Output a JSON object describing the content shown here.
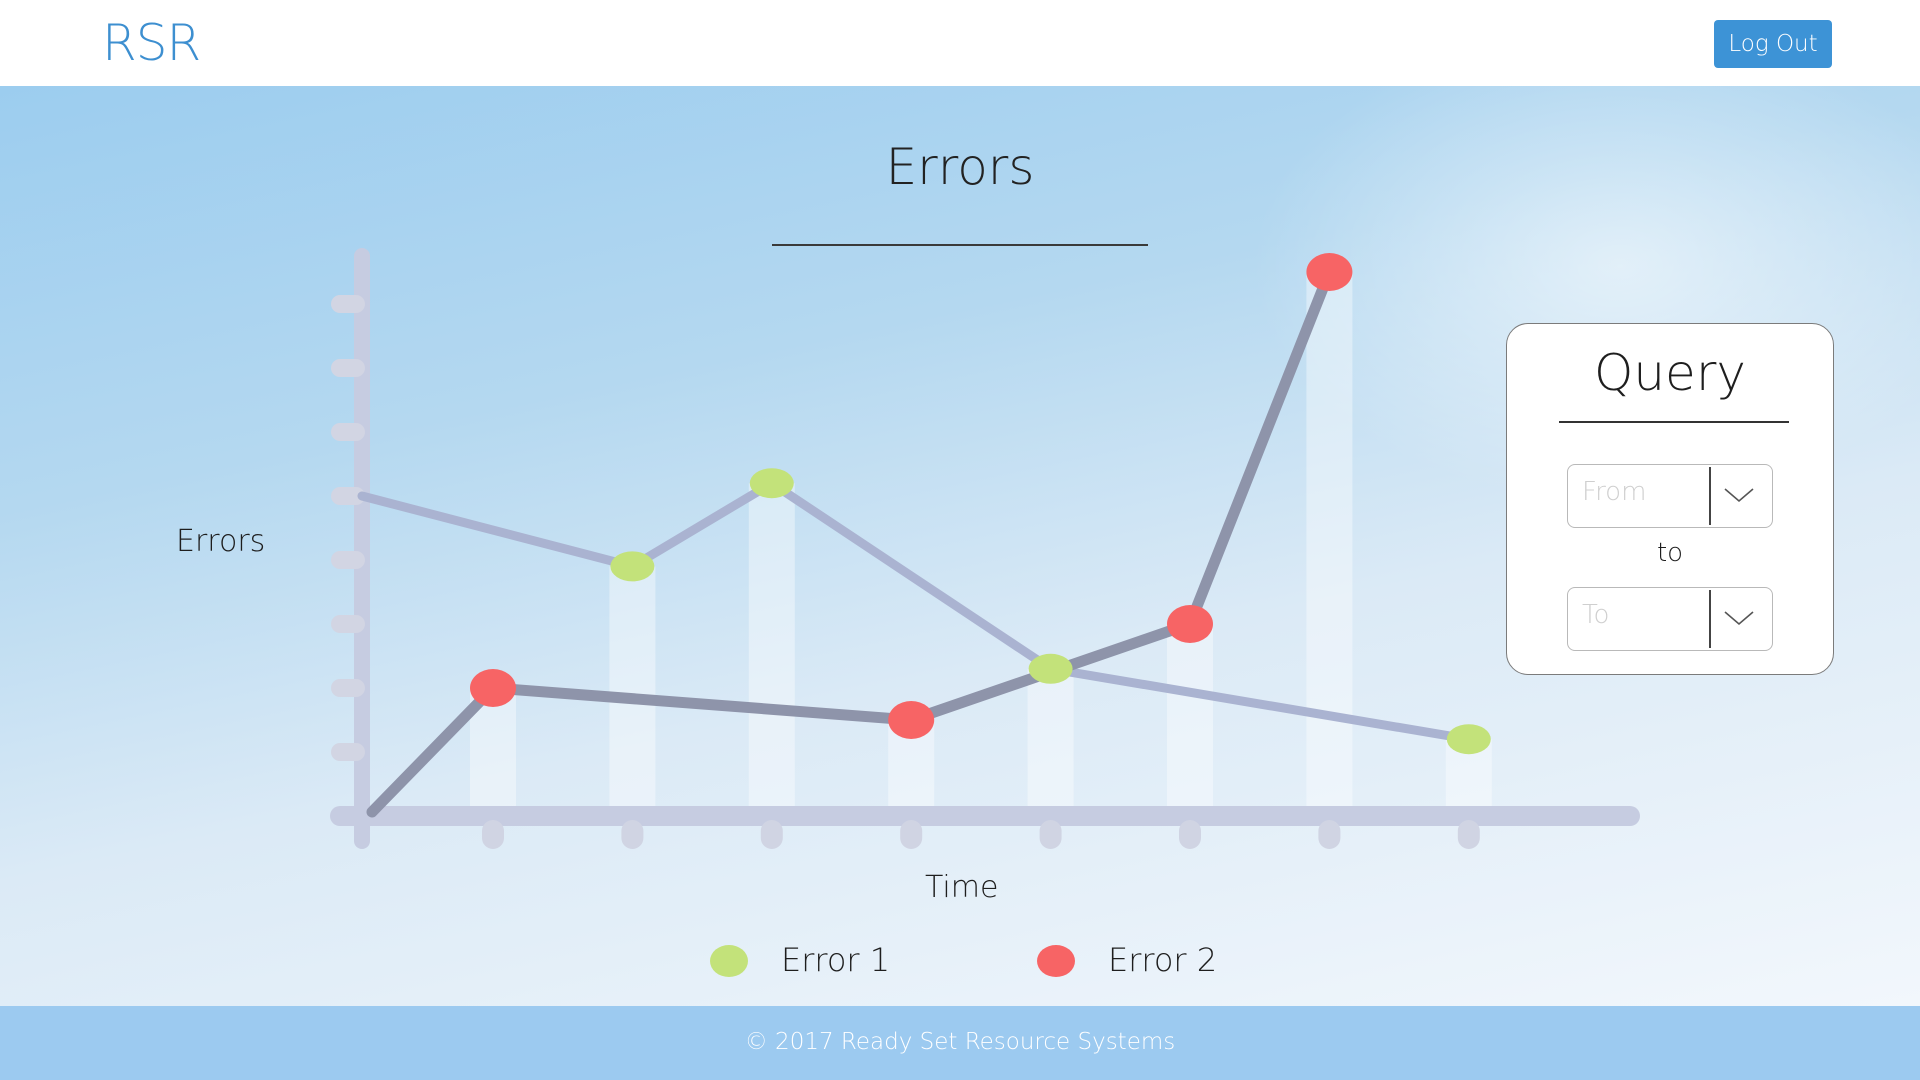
{
  "header": {
    "logo_text": "RSR",
    "logout_label": "Log Out"
  },
  "page": {
    "title": "Errors"
  },
  "chart_data": {
    "type": "line",
    "title": "Errors",
    "xlabel": "Time",
    "ylabel": "Errors",
    "x": [
      1,
      2,
      3,
      4,
      5,
      6,
      7,
      8
    ],
    "ylim": [
      0,
      9
    ],
    "grid": false,
    "legend_position": "bottom",
    "series": [
      {
        "name": "Error 1",
        "color": "#c3e27a",
        "line_color": "#aab3d1",
        "x": [
          2,
          3,
          5,
          8
        ],
        "y": [
          3.9,
          5.2,
          2.3,
          1.2
        ]
      },
      {
        "name": "Error 2",
        "color": "#f76465",
        "line_color": "#8e94aa",
        "x": [
          1,
          4,
          6,
          7
        ],
        "y": [
          2.0,
          1.5,
          3.0,
          8.5
        ]
      }
    ]
  },
  "legend": {
    "items": [
      {
        "label": "Error 1",
        "color": "#c3e27a"
      },
      {
        "label": "Error 2",
        "color": "#f76465"
      }
    ]
  },
  "query": {
    "title": "Query",
    "from_placeholder": "From",
    "to_label": "to",
    "to_placeholder": "To"
  },
  "footer": {
    "text": "© 2017 Ready Set Resource Systems"
  }
}
